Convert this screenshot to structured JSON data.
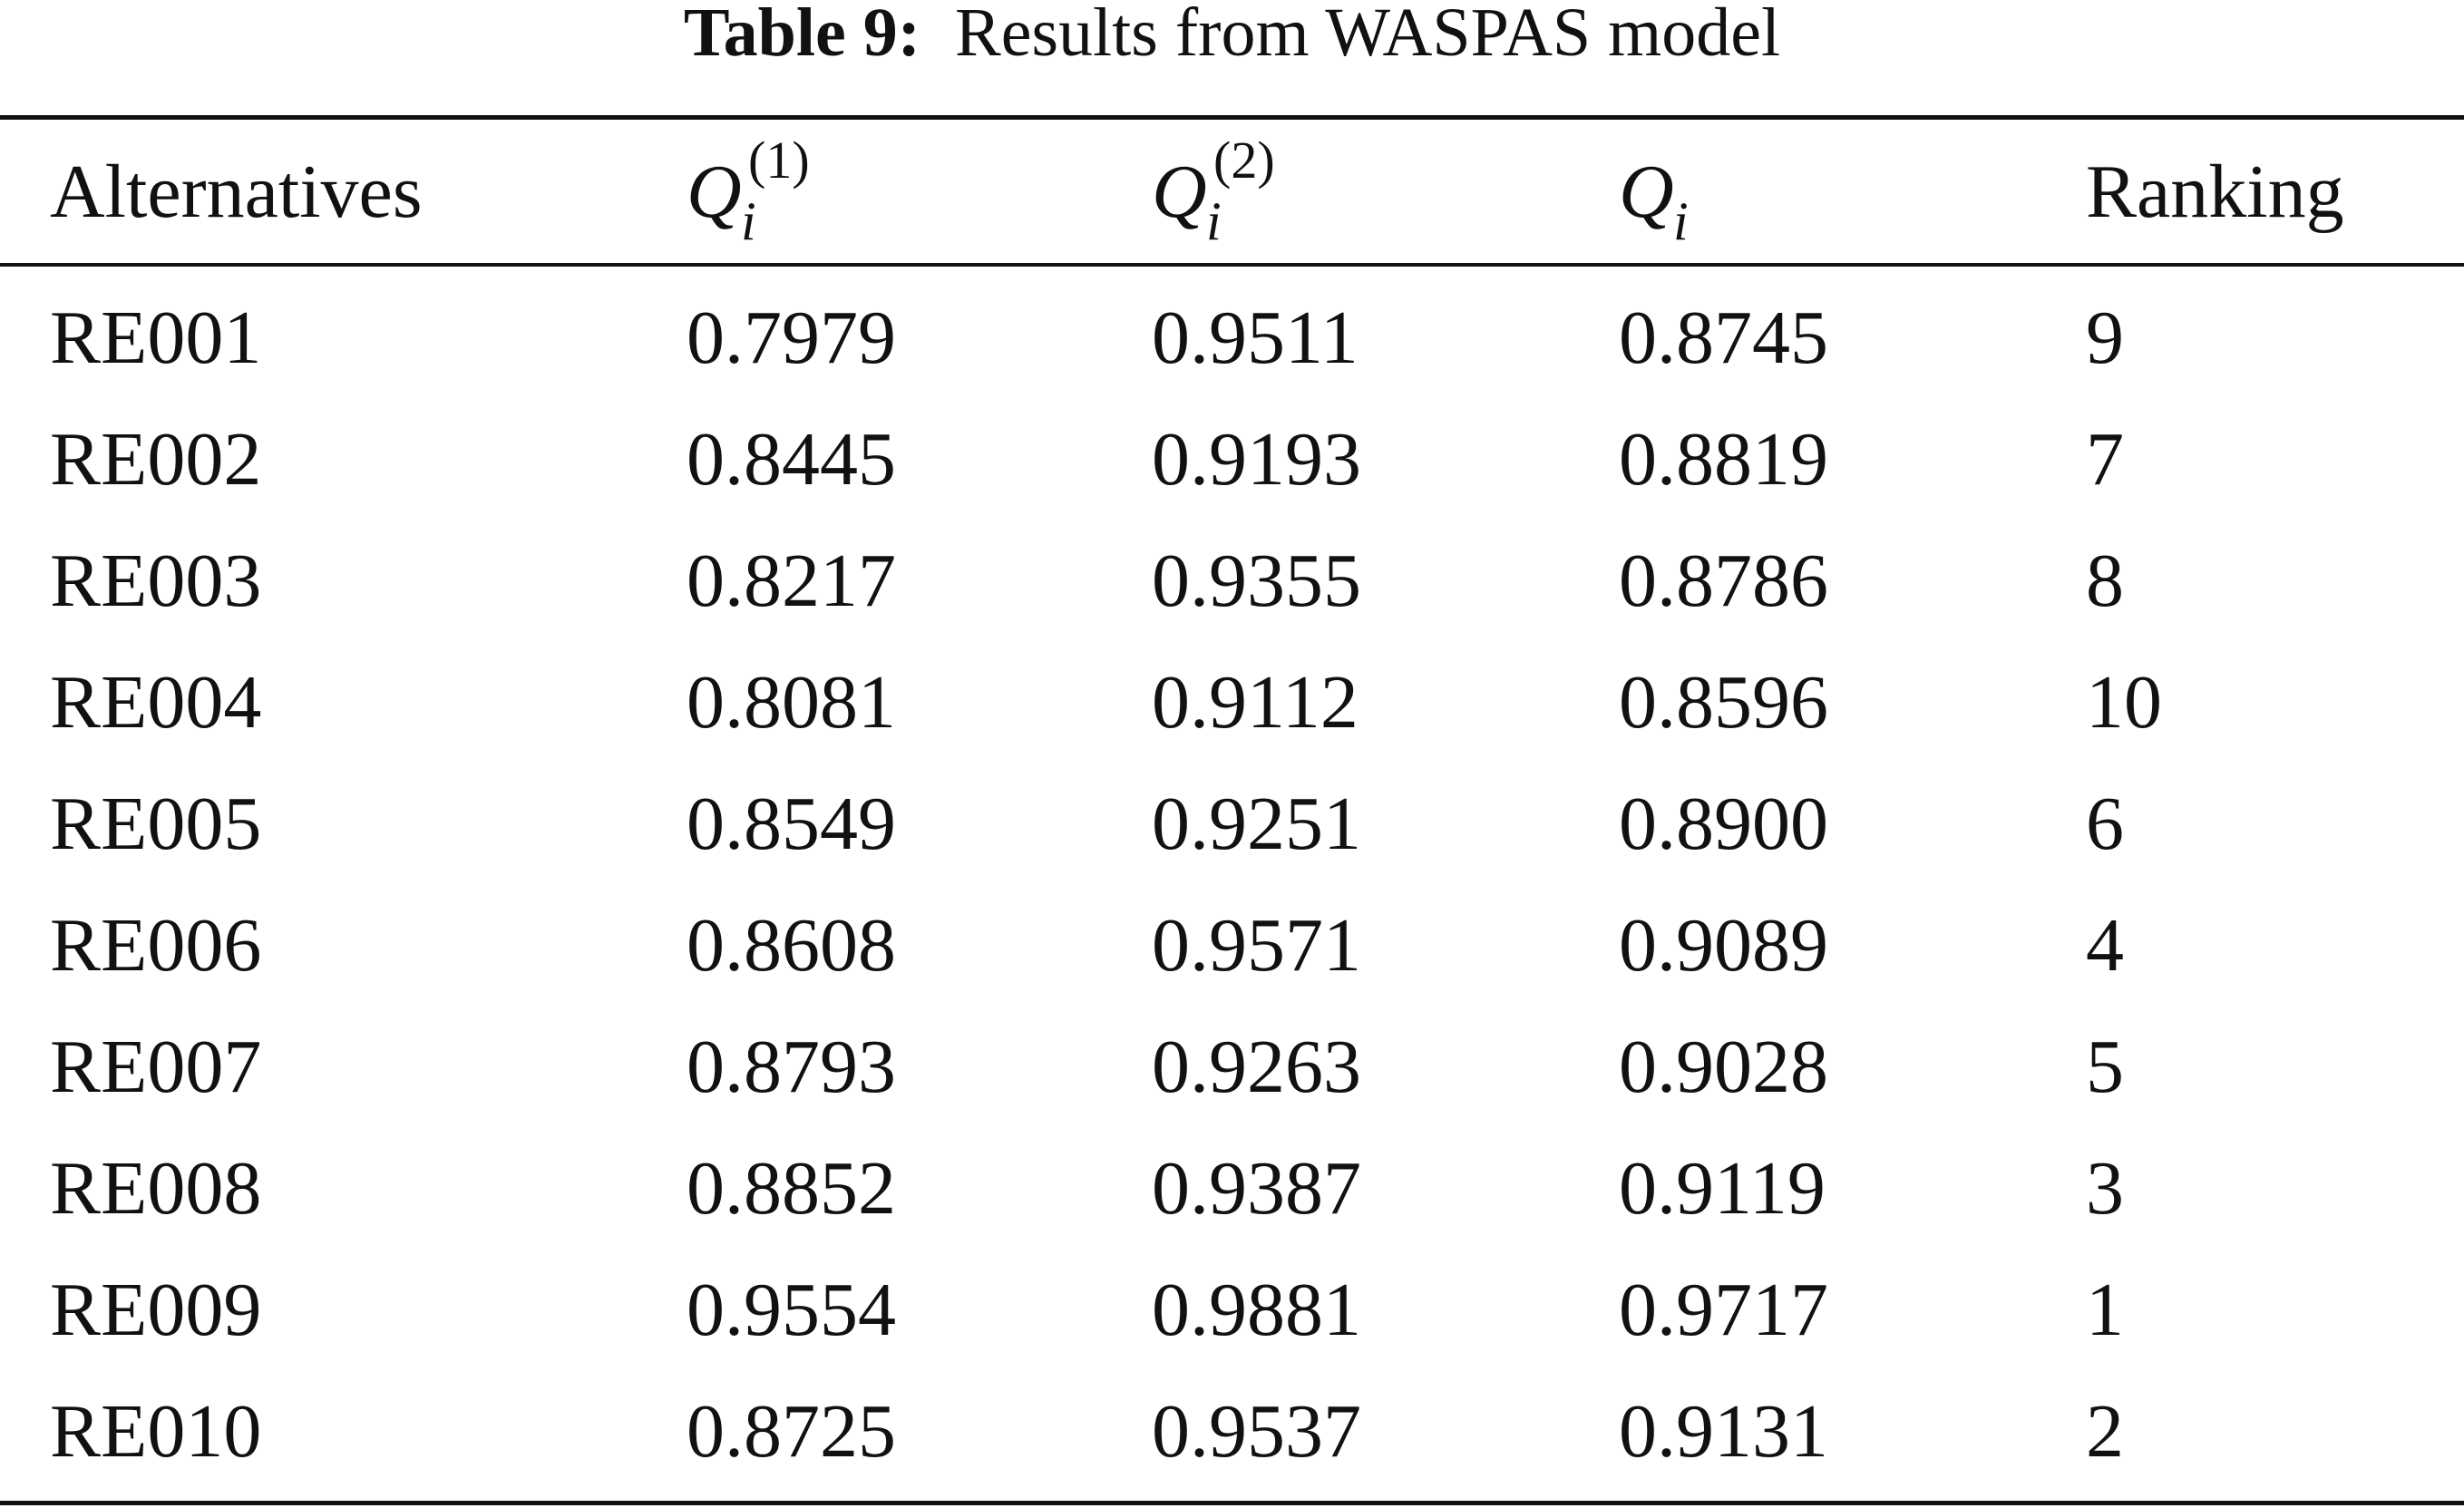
{
  "caption": {
    "label": "Table 9:",
    "text": "Results from WASPAS model"
  },
  "header": {
    "alternatives": "Alternatives",
    "q1": {
      "base": "Q",
      "sub": "i",
      "sup": "(1)"
    },
    "q2": {
      "base": "Q",
      "sub": "i",
      "sup": "(2)"
    },
    "q": {
      "base": "Q",
      "sub": "i"
    },
    "ranking": "Ranking"
  },
  "rows": [
    {
      "alt": "RE001",
      "q1": "0.7979",
      "q2": "0.9511",
      "q": "0.8745",
      "rank": "9"
    },
    {
      "alt": "RE002",
      "q1": "0.8445",
      "q2": "0.9193",
      "q": "0.8819",
      "rank": "7"
    },
    {
      "alt": "RE003",
      "q1": "0.8217",
      "q2": "0.9355",
      "q": "0.8786",
      "rank": "8"
    },
    {
      "alt": "RE004",
      "q1": "0.8081",
      "q2": "0.9112",
      "q": "0.8596",
      "rank": "10"
    },
    {
      "alt": "RE005",
      "q1": "0.8549",
      "q2": "0.9251",
      "q": "0.8900",
      "rank": "6"
    },
    {
      "alt": "RE006",
      "q1": "0.8608",
      "q2": "0.9571",
      "q": "0.9089",
      "rank": "4"
    },
    {
      "alt": "RE007",
      "q1": "0.8793",
      "q2": "0.9263",
      "q": "0.9028",
      "rank": "5"
    },
    {
      "alt": "RE008",
      "q1": "0.8852",
      "q2": "0.9387",
      "q": "0.9119",
      "rank": "3"
    },
    {
      "alt": "RE009",
      "q1": "0.9554",
      "q2": "0.9881",
      "q": "0.9717",
      "rank": "1"
    },
    {
      "alt": "RE010",
      "q1": "0.8725",
      "q2": "0.9537",
      "q": "0.9131",
      "rank": "2"
    }
  ]
}
